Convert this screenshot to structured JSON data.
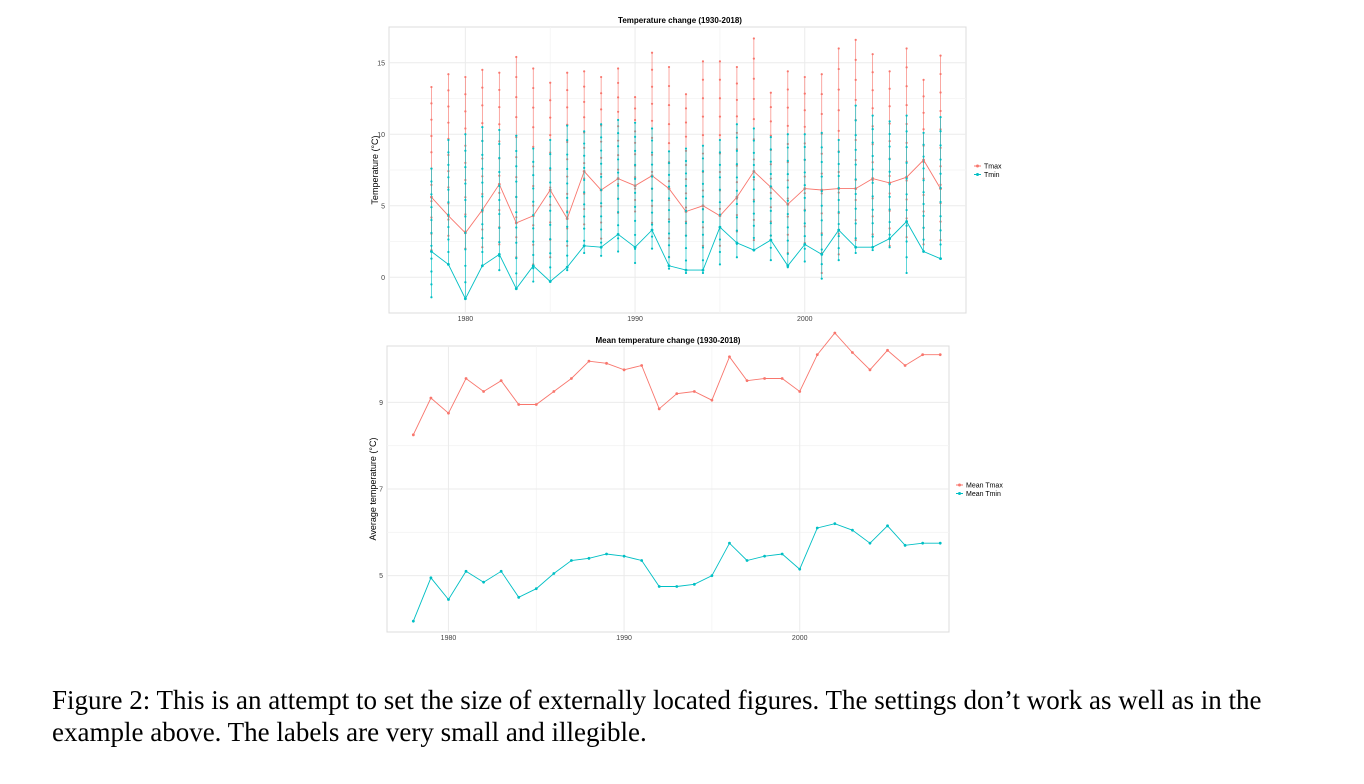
{
  "colors": {
    "tmax": "#f8766d",
    "tmin": "#00bfc4",
    "grid": "#ebebeb",
    "panel_border": "#dcdcdc"
  },
  "caption": "Figure 2: This is an attempt to set the size of externally located figures. The settings don’t work as well as in the example above. The labels are very small and illegible.",
  "chart_data": [
    {
      "type": "line",
      "title": "Temperature change (1930-2018)",
      "xlabel": "",
      "ylabel": "Temperature (°C)",
      "xlim": [
        1975.5,
        2009.5
      ],
      "ylim": [
        -2.5,
        17.5
      ],
      "x_ticks": [
        1980,
        1990,
        2000
      ],
      "x_tick_labels": [
        "1980",
        "1990",
        "2000"
      ],
      "y_ticks": [
        0,
        5,
        10,
        15
      ],
      "y_tick_labels": [
        "0",
        "5",
        "10",
        "15"
      ],
      "grid": true,
      "legend_position": "right",
      "years": [
        1978,
        1979,
        1980,
        1981,
        1982,
        1983,
        1984,
        1985,
        1986,
        1987,
        1988,
        1989,
        1990,
        1991,
        1992,
        1993,
        1994,
        1995,
        1996,
        1997,
        1998,
        1999,
        2000,
        2001,
        2002,
        2003,
        2004,
        2005,
        2006,
        2007,
        2008
      ],
      "series": [
        {
          "name": "Tmax",
          "values": [
            5.6,
            4.3,
            3.1,
            4.7,
            6.5,
            3.8,
            4.3,
            6.1,
            4.1,
            7.4,
            6.1,
            6.9,
            6.4,
            7.1,
            6.2,
            4.6,
            5.0,
            4.3,
            5.6,
            7.4,
            6.3,
            5.1,
            6.2,
            6.1,
            6.2,
            6.2,
            6.9,
            6.6,
            7.0,
            8.2,
            6.2
          ],
          "max_values": [
            13.3,
            14.2,
            14.0,
            14.5,
            14.3,
            15.4,
            14.6,
            13.6,
            14.3,
            14.4,
            14.0,
            14.6,
            12.6,
            15.7,
            14.7,
            12.8,
            15.1,
            15.1,
            14.7,
            16.7,
            12.9,
            14.4,
            14.0,
            14.2,
            16.0,
            16.6,
            15.6,
            14.4,
            16.0,
            13.8,
            15.5
          ],
          "min_values": [
            1.9,
            2.9,
            2.0,
            2.1,
            2.3,
            1.4,
            0.9,
            1.4,
            2.2,
            3.7,
            2.7,
            4.5,
            4.6,
            3.8,
            1.4,
            2.9,
            2.2,
            2.2,
            3.2,
            2.6,
            2.9,
            1.7,
            2.4,
            0.3,
            1.6,
            2.6,
            3.0,
            2.2,
            2.8,
            2.3,
            2.6
          ]
        },
        {
          "name": "Tmin",
          "values": [
            1.8,
            0.9,
            -1.5,
            0.8,
            1.6,
            -0.8,
            0.8,
            -0.3,
            0.7,
            2.2,
            2.1,
            3.0,
            2.1,
            3.3,
            0.8,
            0.5,
            0.5,
            3.5,
            2.4,
            1.9,
            2.6,
            0.8,
            2.3,
            1.6,
            3.3,
            2.1,
            2.1,
            2.7,
            3.9,
            1.8,
            1.3
          ],
          "max_values": [
            7.6,
            9.6,
            10.0,
            10.5,
            10.3,
            9.9,
            9.0,
            9.6,
            10.6,
            10.2,
            10.7,
            11.0,
            10.8,
            10.4,
            8.8,
            9.0,
            9.2,
            9.6,
            10.7,
            10.4,
            9.8,
            10.0,
            10.0,
            10.1,
            9.6,
            12.0,
            11.3,
            10.9,
            11.3,
            10.1,
            11.2
          ],
          "min_values": [
            -1.4,
            0.9,
            -1.5,
            0.8,
            0.5,
            -0.8,
            -0.3,
            -0.3,
            0.5,
            1.7,
            1.5,
            1.8,
            1.0,
            2.0,
            0.6,
            0.3,
            0.3,
            0.9,
            1.4,
            1.9,
            1.2,
            0.7,
            1.1,
            -0.1,
            1.2,
            1.7,
            1.9,
            2.1,
            0.3,
            1.8,
            1.3
          ]
        }
      ]
    },
    {
      "type": "line",
      "title": "Mean temperature change (1930-2018)",
      "xlabel": "",
      "ylabel": "Average temperature (°C)",
      "xlim": [
        1976.5,
        2008.5
      ],
      "ylim": [
        3.7,
        10.3
      ],
      "x_ticks": [
        1980,
        1990,
        2000
      ],
      "x_tick_labels": [
        "1980",
        "1990",
        "2000"
      ],
      "y_ticks": [
        5,
        7,
        9
      ],
      "y_tick_labels": [
        "5",
        "7",
        "9"
      ],
      "grid": true,
      "legend_position": "right",
      "years": [
        1978,
        1979,
        1980,
        1981,
        1982,
        1983,
        1984,
        1985,
        1986,
        1987,
        1988,
        1989,
        1990,
        1991,
        1992,
        1993,
        1994,
        1995,
        1996,
        1997,
        1998,
        1999,
        2000,
        2001,
        2002,
        2003,
        2004,
        2005,
        2006,
        2007,
        2008
      ],
      "series": [
        {
          "name": "Mean Tmax",
          "values": [
            8.25,
            9.1,
            8.75,
            9.55,
            9.25,
            9.5,
            8.95,
            8.95,
            9.25,
            9.55,
            9.95,
            9.9,
            9.75,
            9.85,
            8.85,
            9.2,
            9.25,
            9.05,
            10.05,
            9.5,
            9.55,
            9.55,
            9.25,
            10.1,
            10.6,
            10.15,
            9.75,
            10.2,
            9.85,
            10.1,
            10.1
          ],
          "legend_label": "Mean Tmax"
        },
        {
          "name": "Mean Tmin",
          "values": [
            3.95,
            4.95,
            4.45,
            5.1,
            4.85,
            5.1,
            4.5,
            4.7,
            5.05,
            5.35,
            5.4,
            5.5,
            5.45,
            5.35,
            4.75,
            4.75,
            4.8,
            5.0,
            5.75,
            5.35,
            5.45,
            5.5,
            5.15,
            6.1,
            6.2,
            6.05,
            5.75,
            6.15,
            5.7,
            5.75,
            5.75
          ],
          "legend_label": "Mean Tmin"
        }
      ]
    }
  ]
}
